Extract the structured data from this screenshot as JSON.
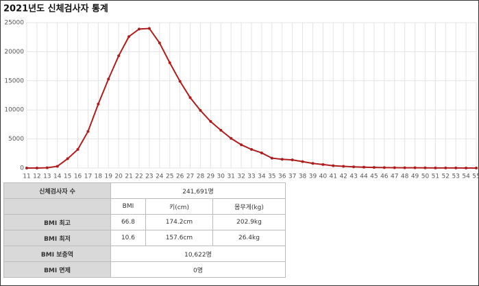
{
  "chart_data": {
    "type": "line",
    "title": "2021년도 신체검사자 통계",
    "x": [
      11,
      12,
      13,
      14,
      15,
      16,
      17,
      18,
      19,
      20,
      21,
      22,
      23,
      24,
      25,
      26,
      27,
      28,
      29,
      30,
      31,
      32,
      33,
      34,
      35,
      36,
      37,
      38,
      39,
      40,
      41,
      42,
      43,
      44,
      45,
      46,
      47,
      48,
      49,
      50,
      51,
      52,
      53,
      54,
      55
    ],
    "xlim": [
      11,
      55
    ],
    "xticks": [
      11,
      12,
      13,
      14,
      15,
      16,
      17,
      18,
      19,
      20,
      21,
      22,
      23,
      24,
      25,
      26,
      27,
      28,
      29,
      30,
      31,
      32,
      33,
      34,
      35,
      36,
      37,
      38,
      39,
      40,
      41,
      42,
      43,
      44,
      45,
      46,
      47,
      48,
      49,
      50,
      51,
      52,
      53,
      54,
      55
    ],
    "series": [
      {
        "color": "#b01c1c",
        "values": [
          0,
          0,
          50,
          300,
          1600,
          3200,
          6300,
          11000,
          15300,
          19300,
          22600,
          23900,
          24000,
          21500,
          18100,
          14900,
          12100,
          9900,
          8000,
          6500,
          5100,
          4000,
          3200,
          2600,
          1700,
          1500,
          1400,
          1100,
          800,
          600,
          400,
          300,
          200,
          150,
          100,
          80,
          60,
          50,
          40,
          30,
          20,
          15,
          10,
          5,
          5
        ]
      }
    ],
    "ylim": [
      0,
      25000
    ],
    "yticks": [
      0,
      5000,
      10000,
      15000,
      20000,
      25000
    ],
    "grid": true
  },
  "table": {
    "rows": [
      {
        "label": "신체검사자 수",
        "cells": [
          "241,691명"
        ]
      },
      {
        "cells": [
          "BMI",
          "키(cm)",
          "몸무게(kg)"
        ]
      },
      {
        "label": "BMI 최고",
        "cells": [
          "66.8",
          "174.2cm",
          "202.9kg"
        ]
      },
      {
        "label": "BMI 최저",
        "cells": [
          "10.6",
          "157.6cm",
          "26.4kg"
        ]
      },
      {
        "label": "BMI 보충역",
        "cells": [
          "10,622명"
        ]
      },
      {
        "label": "BMI 면제",
        "cells": [
          "0명"
        ]
      }
    ]
  }
}
